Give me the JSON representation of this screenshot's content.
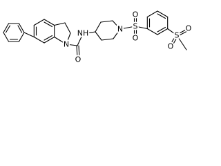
{
  "atoms": {
    "labels": [
      "N",
      "O",
      "NH",
      "N",
      "S",
      "O",
      "O",
      "S",
      "O",
      "O"
    ]
  }
}
